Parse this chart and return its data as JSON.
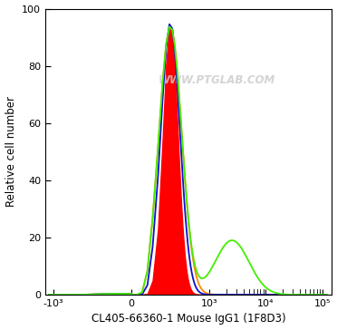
{
  "title": "",
  "xlabel": "CL405-66360-1 Mouse IgG1 (1F8D3)",
  "ylabel": "Relative cell number",
  "watermark": "WWW.PTGLAB.COM",
  "ylim": [
    0,
    100
  ],
  "yticks": [
    0,
    20,
    40,
    60,
    80,
    100
  ],
  "xtick_labels": [
    "-10³",
    "0",
    "10³",
    "10⁴",
    "10⁵"
  ],
  "xtick_positions": [
    -1000,
    0,
    1000,
    10000,
    100000
  ],
  "background_color": "#ffffff",
  "red_fill_color": "#ff0000",
  "blue_line_color": "#1010cc",
  "orange_line_color": "#ff8800",
  "green_line_color": "#44ee00",
  "line_width": 1.3,
  "linthresh": 100,
  "linscale": 0.35,
  "peak_x": 200,
  "peak_amplitude": 95,
  "sigma_red": 0.13,
  "sigma_blue": 0.17,
  "sigma_orange": 0.2,
  "sigma_green_main": 0.2,
  "green_secondary_x": 2500,
  "green_secondary_amp": 19,
  "green_secondary_sigma": 0.3
}
